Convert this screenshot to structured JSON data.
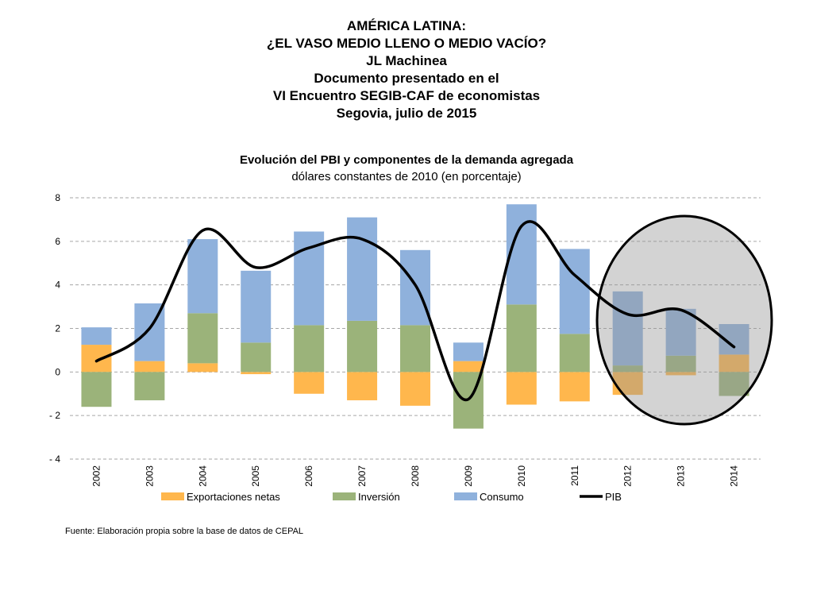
{
  "header": {
    "lines": [
      "AMÉRICA LATINA:",
      "¿EL VASO MEDIO LLENO O MEDIO VACÍO?",
      "JL Machinea",
      "Documento presentado en el",
      "VI Encuentro SEGIB-CAF de economistas",
      "Segovia, julio de 2015"
    ]
  },
  "chart_data": {
    "type": "bar",
    "title": "Evolución del PBI y componentes de la demanda agregada",
    "subtitle": "dólares constantes de 2010 (en porcentaje)",
    "categories": [
      "2002",
      "2003",
      "2004",
      "2005",
      "2006",
      "2007",
      "2008",
      "2009",
      "2010",
      "2011",
      "2012",
      "2013",
      "2014"
    ],
    "ylim": [
      -4,
      8
    ],
    "yticks": [
      8,
      6,
      4,
      2,
      0,
      -2,
      -4
    ],
    "ytick_labels": [
      "8",
      "6",
      "4",
      "2",
      "0",
      "- 2",
      "- 4"
    ],
    "grid": true,
    "legend_position": "bottom",
    "stacked": true,
    "series": [
      {
        "name": "Exportaciones netas",
        "kind": "bar",
        "color": "#ffb74d",
        "values": [
          1.25,
          0.5,
          0.4,
          -0.1,
          -1.0,
          -1.3,
          -1.55,
          0.5,
          -1.5,
          -1.35,
          -1.05,
          -0.15,
          0.8
        ]
      },
      {
        "name": "Inversión",
        "kind": "bar",
        "color": "#9bb37a",
        "values": [
          -1.6,
          -1.3,
          2.3,
          1.35,
          2.15,
          2.35,
          2.15,
          -2.6,
          3.1,
          1.75,
          0.3,
          0.75,
          -1.1
        ]
      },
      {
        "name": "Consumo",
        "kind": "bar",
        "color": "#8fb1dc",
        "values": [
          0.8,
          2.65,
          3.4,
          3.3,
          4.3,
          4.75,
          3.45,
          0.85,
          4.6,
          3.9,
          3.4,
          2.15,
          1.4
        ]
      },
      {
        "name": "PIB",
        "kind": "line",
        "color": "#000000",
        "values": [
          0.5,
          2.0,
          6.5,
          4.8,
          5.7,
          6.1,
          4.0,
          -1.25,
          6.7,
          4.45,
          2.65,
          2.85,
          1.15
        ]
      }
    ],
    "highlight": {
      "shape": "ellipse",
      "covers": [
        "2012",
        "2013",
        "2014"
      ]
    }
  },
  "source": "Fuente: Elaboración propia sobre la base de datos de CEPAL"
}
